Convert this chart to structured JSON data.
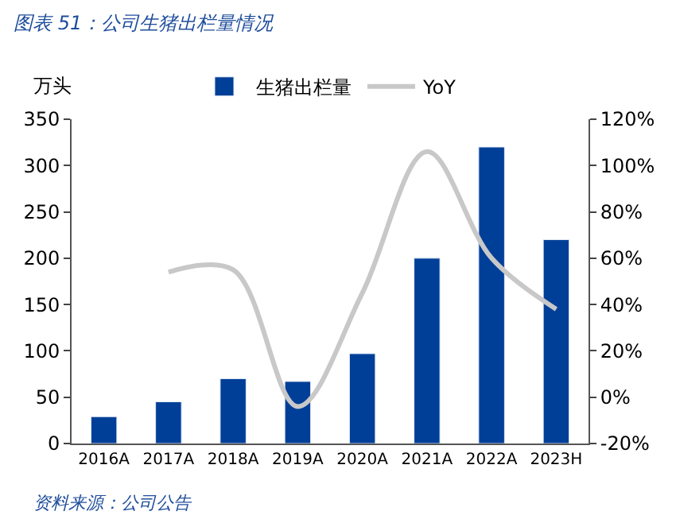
{
  "chart_data": {
    "type": "bar",
    "title": "图表 51：公司生猪出栏量情况",
    "ylabel": "万头",
    "categories": [
      "2016A",
      "2017A",
      "2018A",
      "2019A",
      "2020A",
      "2021A",
      "2022A",
      "2023H"
    ],
    "series": [
      {
        "name": "生猪出栏量",
        "color": "#003f98",
        "values": [
          29,
          45,
          70,
          67,
          97,
          200,
          320,
          220
        ]
      },
      {
        "name": "YoY",
        "type": "line",
        "axis": "y2",
        "color": "#c8c8c8",
        "values": [
          null,
          54,
          55,
          -4,
          45,
          106,
          60,
          38
        ]
      }
    ],
    "ylim": [
      0,
      350
    ],
    "yticks": [
      0,
      50,
      100,
      150,
      200,
      250,
      300,
      350
    ],
    "y2lim": [
      -20,
      120
    ],
    "y2ticks": [
      {
        "value": -20,
        "label": "-20%"
      },
      {
        "value": 0,
        "label": "0%"
      },
      {
        "value": 20,
        "label": "20%"
      },
      {
        "value": 40,
        "label": "40%"
      },
      {
        "value": 60,
        "label": "60%"
      },
      {
        "value": 80,
        "label": "80%"
      },
      {
        "value": 100,
        "label": "100%"
      },
      {
        "value": 120,
        "label": "120%"
      }
    ],
    "legend": "top",
    "annotations": [
      "资料来源：公司公告"
    ]
  }
}
